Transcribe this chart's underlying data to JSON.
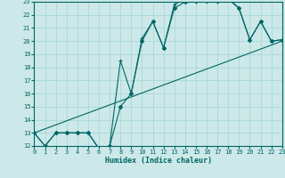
{
  "xlabel": "Humidex (Indice chaleur)",
  "bg_color": "#cce8e8",
  "grid_color": "#aad8d8",
  "line_color": "#006666",
  "xlim": [
    0,
    23
  ],
  "ylim": [
    12,
    23
  ],
  "xticks": [
    0,
    1,
    2,
    3,
    4,
    5,
    6,
    7,
    8,
    9,
    10,
    11,
    12,
    13,
    14,
    15,
    16,
    17,
    18,
    19,
    20,
    21,
    22,
    23
  ],
  "yticks": [
    12,
    13,
    14,
    15,
    16,
    17,
    18,
    19,
    20,
    21,
    22,
    23
  ],
  "line1_x": [
    0,
    1,
    2,
    3,
    4,
    5,
    6,
    7,
    8,
    9,
    10,
    11,
    12,
    13,
    14,
    15,
    16,
    17,
    18,
    19,
    20,
    21,
    22,
    23
  ],
  "line1_y": [
    13,
    12,
    13,
    13,
    13,
    13,
    11.8,
    12,
    15.0,
    16.0,
    20.0,
    21.5,
    19.5,
    22.5,
    23,
    23.1,
    23.1,
    23.1,
    23.2,
    22.5,
    20.1,
    21.5,
    20,
    20.1
  ],
  "line2_x": [
    0,
    1,
    2,
    3,
    4,
    5,
    6,
    7,
    8,
    9,
    10,
    11,
    12,
    13,
    14,
    15,
    16,
    17,
    18,
    19,
    20,
    21,
    22,
    23
  ],
  "line2_y": [
    13,
    12,
    13,
    13,
    13,
    13,
    11.8,
    12,
    18.5,
    16.0,
    20.2,
    21.5,
    19.5,
    22.8,
    23.2,
    23,
    23.2,
    23,
    23.3,
    22.5,
    20.1,
    21.5,
    20,
    20.1
  ],
  "line3_x": [
    0,
    23
  ],
  "line3_y": [
    13,
    20
  ]
}
